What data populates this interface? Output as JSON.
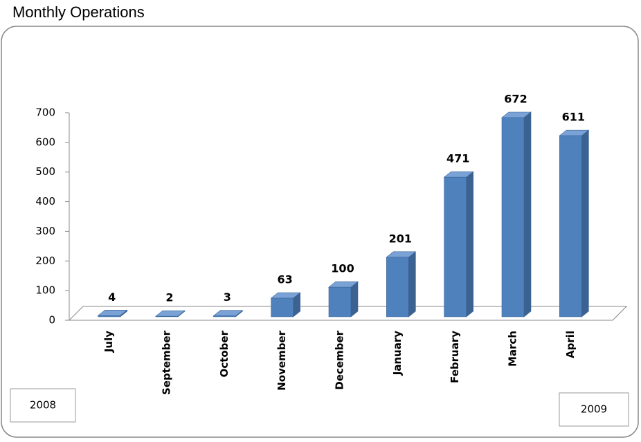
{
  "chart_data": {
    "type": "bar",
    "title": "Monthly Operations",
    "categories": [
      "July",
      "September",
      "October",
      "November",
      "December",
      "January",
      "February",
      "March",
      "April"
    ],
    "values": [
      4,
      2,
      3,
      63,
      100,
      201,
      471,
      672,
      611
    ],
    "color": "#4f81bd",
    "ylim": [
      0,
      700
    ],
    "yticks": [
      0,
      100,
      200,
      300,
      400,
      500,
      600,
      700
    ],
    "annotations": [
      "2008",
      "2009"
    ]
  }
}
